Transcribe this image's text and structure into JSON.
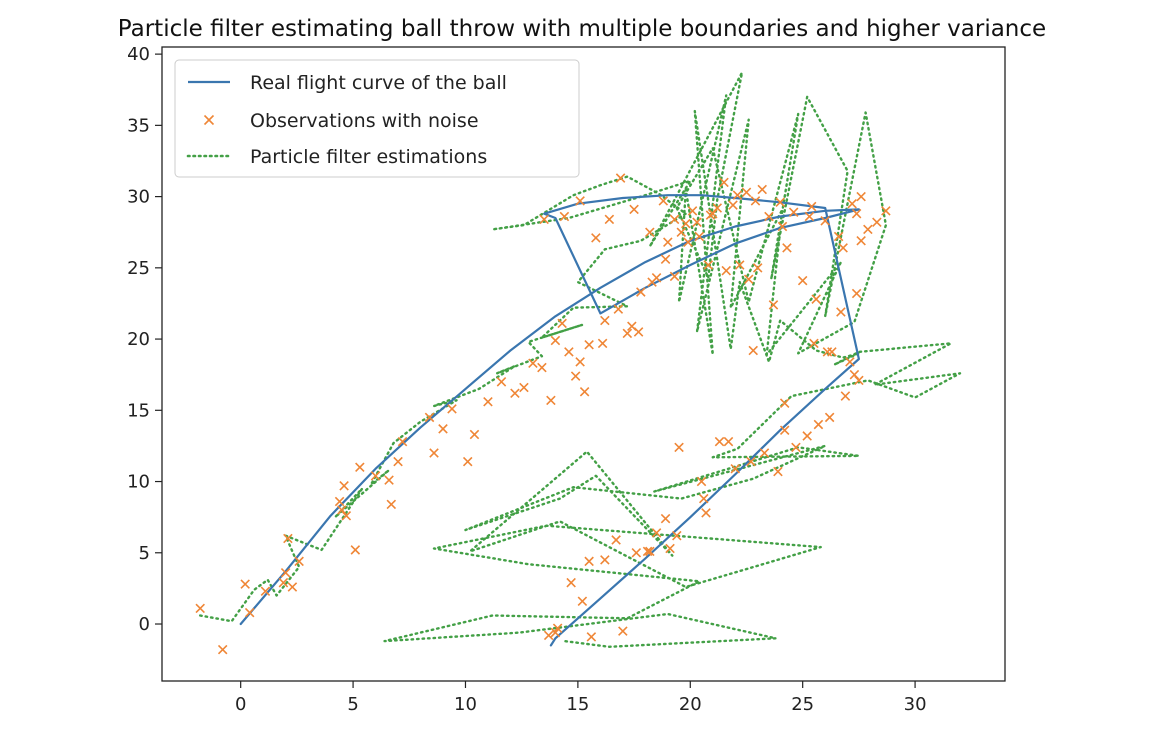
{
  "chart_data": {
    "type": "line",
    "title": "Particle filter estimating ball throw with multiple boundaries and higher variance",
    "xlabel": "",
    "ylabel": "",
    "xlim": [
      -3.5,
      34.0
    ],
    "ylim": [
      -4.0,
      40.5
    ],
    "x_ticks": [
      0,
      5,
      10,
      15,
      20,
      25,
      30
    ],
    "y_ticks": [
      0,
      5,
      10,
      15,
      20,
      25,
      30,
      35,
      40
    ],
    "grid": false,
    "legend_position": "top-left",
    "colors": {
      "real": "#3a76af",
      "observations": "#ef8636",
      "particles": "#43a046"
    },
    "series": [
      {
        "name": "Real flight curve of the ball",
        "style": "solid line",
        "x": [
          0,
          2,
          4,
          6,
          8,
          10,
          12,
          14,
          16,
          18,
          20,
          22,
          24,
          26,
          27.5,
          26,
          24,
          22,
          20,
          18,
          16,
          14,
          13.5,
          15,
          17,
          19,
          20.5,
          22,
          24,
          26,
          27.5,
          26,
          24,
          22,
          20,
          18,
          16,
          14,
          13.8
        ],
        "y": [
          0,
          3.7,
          7.6,
          10.9,
          13.8,
          16.5,
          19.2,
          21.6,
          23.6,
          25.4,
          26.9,
          27.9,
          28.6,
          29.0,
          29.1,
          28.5,
          27.8,
          26.7,
          25.2,
          23.6,
          21.8,
          28.5,
          28.8,
          29.5,
          29.9,
          30.1,
          30.1,
          29.9,
          29.6,
          29.2,
          18.6,
          16.5,
          13.6,
          10.5,
          7.5,
          4.6,
          1.8,
          -1.0,
          -1.5
        ]
      },
      {
        "name": "Observations with noise",
        "style": "x markers",
        "x": [
          -1.8,
          -0.8,
          0.2,
          0.4,
          1.1,
          1.9,
          2.0,
          2.1,
          2.3,
          2.6,
          4.4,
          4.5,
          4.7,
          4.6,
          5.1,
          5.3,
          6.0,
          6.6,
          6.7,
          7.0,
          7.2,
          8.4,
          8.6,
          9.0,
          9.4,
          10.1,
          10.4,
          11.0,
          11.6,
          12.2,
          12.6,
          13.0,
          13.4,
          14.3,
          14.0,
          14.6,
          15.1,
          15.5,
          16.2,
          16.8,
          17.4,
          17.8,
          13.8,
          14.9,
          15.3,
          16.1,
          17.2,
          17.7,
          18.5,
          18.9,
          19.3,
          19.9,
          20.4,
          20.8,
          21.6,
          22.2,
          22.6,
          23.0,
          23.7,
          24.3,
          25.0,
          25.6,
          26.1,
          26.7,
          27.1,
          27.4,
          27.6,
          27.9,
          28.3,
          28.7,
          27.3,
          27.5,
          26.9,
          26.2,
          25.7,
          25.2,
          24.7,
          24.2,
          23.9,
          23.3,
          22.7,
          22.0,
          21.3,
          20.7,
          20.5,
          19.4,
          19.1,
          18.9,
          18.5,
          18.1,
          17.6,
          16.7,
          16.2,
          15.5,
          15.2,
          14.7,
          14.1,
          13.7,
          18.3,
          19.0,
          19.6,
          20.3,
          21.0,
          21.9,
          22.5,
          23.2,
          24.0,
          24.6,
          25.3,
          26.0,
          26.6,
          27.2,
          27.6,
          27.4,
          26.8,
          25.4,
          24.1,
          23.5,
          22.9,
          22.1,
          21.5,
          21.2,
          20.9,
          20.1,
          19.8,
          19.3,
          18.8,
          18.2,
          17.5,
          16.9,
          16.4,
          15.8,
          15.1,
          14.4,
          13.5,
          14.0,
          15.6,
          17.0,
          18.2,
          19.5,
          20.6,
          21.7,
          22.8,
          24.2,
          25.5,
          26.3
        ],
        "y": [
          1.1,
          -1.8,
          2.8,
          0.8,
          2.3,
          2.9,
          3.6,
          6.0,
          2.6,
          4.4,
          8.6,
          8.0,
          7.6,
          9.7,
          5.2,
          11.0,
          10.4,
          10.1,
          8.4,
          11.4,
          12.8,
          14.5,
          12.0,
          13.7,
          15.1,
          11.4,
          13.3,
          15.6,
          17.0,
          16.2,
          16.6,
          18.3,
          18.0,
          21.1,
          19.9,
          19.1,
          18.4,
          19.6,
          21.3,
          22.1,
          20.9,
          23.3,
          15.7,
          17.4,
          16.3,
          19.7,
          20.4,
          20.5,
          24.3,
          25.6,
          24.4,
          26.8,
          27.2,
          25.2,
          24.8,
          25.2,
          24.2,
          25.0,
          22.4,
          26.4,
          24.1,
          22.8,
          19.1,
          21.9,
          18.4,
          23.2,
          26.9,
          27.7,
          28.2,
          29.0,
          17.5,
          17.1,
          16.0,
          14.5,
          14.0,
          13.2,
          12.4,
          13.6,
          10.7,
          12.0,
          11.4,
          10.9,
          12.8,
          7.8,
          10.0,
          6.2,
          5.3,
          7.4,
          6.4,
          5.1,
          5.0,
          5.9,
          4.5,
          4.4,
          1.6,
          2.9,
          -0.3,
          -0.8,
          24.0,
          26.8,
          27.5,
          28.2,
          28.8,
          29.4,
          30.3,
          30.5,
          29.6,
          28.9,
          28.6,
          28.3,
          27.2,
          29.5,
          30.0,
          28.8,
          26.4,
          29.3,
          27.9,
          28.6,
          29.7,
          30.1,
          31.0,
          29.2,
          28.7,
          29.0,
          28.1,
          28.4,
          29.7,
          27.5,
          29.1,
          31.3,
          28.4,
          27.1,
          29.7,
          28.6,
          28.4,
          -0.6,
          -0.9,
          -0.5,
          5.1,
          12.4,
          8.8,
          12.8,
          19.2,
          15.5,
          19.7,
          19.1
        ]
      },
      {
        "name": "Particle filter estimations",
        "style": "dotted line",
        "x": [
          -1.8,
          -0.4,
          0.6,
          1.2,
          1.6,
          2.6,
          2.0,
          3.6,
          5.4,
          4.2,
          6.6,
          5.8,
          6.8,
          8.0,
          9.6,
          8.6,
          10.6,
          12.2,
          11.4,
          13.4,
          12.8,
          15.2,
          13.4,
          14.8,
          17.2,
          15.0,
          16.2,
          17.8,
          19.8,
          18.6,
          17.2,
          16.0,
          14.8,
          12.6,
          11.2,
          14.6,
          17.8,
          20.0,
          18.2,
          22.3,
          21.2,
          20.8,
          19.4,
          21.0,
          22.6,
          24.8,
          23.6,
          25.2,
          27.0,
          26.0,
          27.8,
          28.7,
          27.3,
          24.8,
          26.7,
          23.4,
          24.1,
          21.8,
          22.6,
          20.3,
          21.6,
          19.5,
          19.8,
          21.0,
          20.2,
          21.8,
          22.2,
          23.5,
          24.0,
          25.6,
          26.8,
          27.5,
          26.4,
          27.5,
          31.6,
          28.2,
          32.0,
          30.0,
          27.9,
          24.5,
          22.1,
          21.0,
          27.5,
          24.8,
          18.4,
          26.0,
          22.8,
          19.6,
          14.8,
          10.0,
          14.2,
          15.8,
          19.2,
          15.4,
          10.2,
          14.2,
          19.8,
          25.8,
          13.6,
          8.6,
          12.8,
          20.4,
          17.2,
          11.2,
          6.4,
          12.4,
          19.0,
          23.8,
          16.4,
          14.4
        ],
        "y": [
          0.6,
          0.2,
          2.4,
          3.1,
          2.0,
          4.0,
          6.2,
          5.2,
          9.5,
          7.5,
          10.8,
          9.8,
          12.7,
          14.2,
          15.7,
          15.3,
          16.5,
          18.1,
          17.6,
          18.8,
          19.8,
          21.0,
          20.1,
          22.2,
          22.3,
          24.0,
          26.3,
          26.9,
          28.8,
          30.2,
          31.4,
          30.8,
          30.1,
          28.0,
          27.7,
          28.5,
          30.0,
          31.1,
          26.5,
          38.7,
          29.8,
          24.3,
          29.2,
          33.4,
          22.6,
          35.8,
          24.2,
          37.0,
          31.8,
          21.6,
          35.9,
          28.0,
          21.2,
          19.0,
          25.4,
          18.9,
          29.1,
          22.2,
          35.4,
          20.5,
          37.1,
          22.6,
          30.5,
          18.9,
          36.0,
          19.3,
          24.0,
          18.4,
          21.3,
          19.2,
          18.7,
          19.0,
          18.2,
          19.1,
          19.7,
          16.8,
          17.6,
          15.9,
          17.1,
          16.0,
          12.3,
          11.7,
          11.8,
          12.4,
          9.3,
          12.5,
          10.2,
          8.8,
          9.6,
          6.6,
          8.8,
          10.4,
          4.8,
          12.1,
          5.1,
          7.2,
          2.6,
          5.4,
          6.9,
          5.3,
          4.2,
          3.0,
          0.4,
          0.6,
          -1.2,
          -0.6,
          0.7,
          -1.0,
          -1.6,
          -1.2
        ]
      }
    ]
  }
}
